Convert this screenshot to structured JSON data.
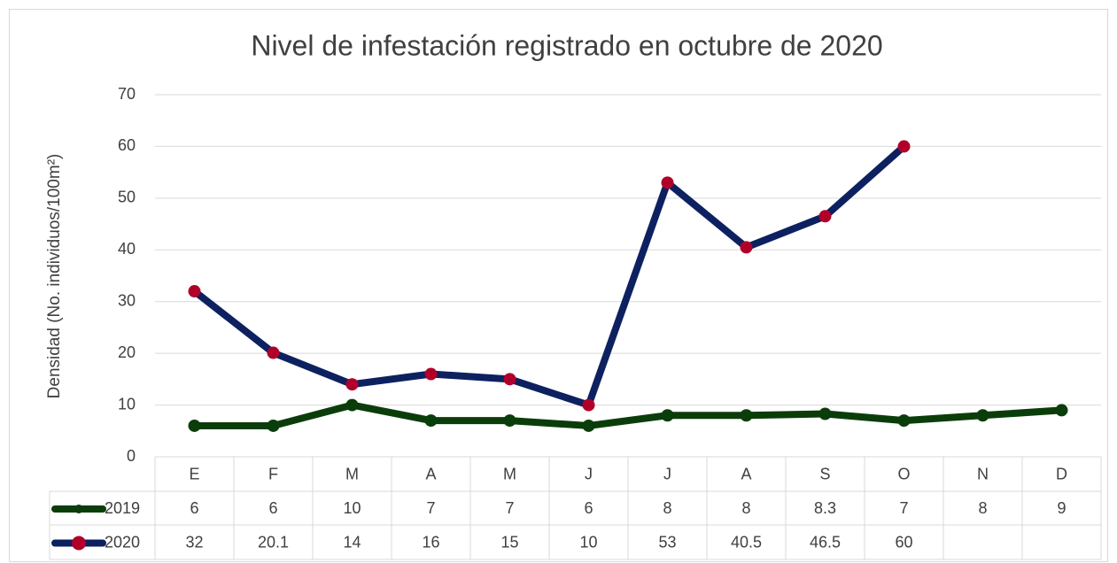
{
  "chart_data": {
    "type": "line",
    "title": "Nivel de infestación registrado en octubre de 2020",
    "y_label": "Densidad (No. individuos/100m²)",
    "categories": [
      "E",
      "F",
      "M",
      "A",
      "M",
      "J",
      "J",
      "A",
      "S",
      "O",
      "N",
      "D"
    ],
    "series": [
      {
        "name": "2019",
        "color": "#0b3d0b",
        "marker_color": "#0b3d0b",
        "values": [
          6,
          6,
          10,
          7,
          7,
          6,
          8,
          8,
          8.3,
          7,
          8,
          9
        ]
      },
      {
        "name": "2020",
        "color": "#0d2160",
        "marker_color": "#b0002a",
        "values": [
          32,
          20.1,
          14,
          16,
          15,
          10,
          53,
          40.5,
          46.5,
          60,
          null,
          null
        ]
      }
    ],
    "ylim": [
      0,
      70
    ],
    "yticks": [
      0,
      10,
      20,
      30,
      40,
      50,
      60,
      70
    ],
    "grid": true,
    "data_table": true
  }
}
